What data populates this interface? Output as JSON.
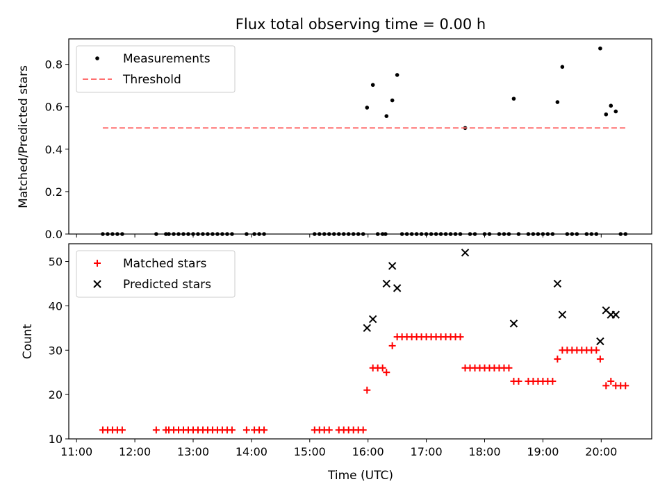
{
  "chart_data": [
    {
      "type": "scatter",
      "title": "Flux total observing time = 0.00 h",
      "ylabel": "Matched/Predicted stars",
      "xlabel": "",
      "ylim": [
        0,
        0.92
      ],
      "yticks": [
        "0.0",
        "0.2",
        "0.4",
        "0.6",
        "0.8"
      ],
      "legend": "top-left",
      "series": [
        {
          "name": "Measurements",
          "color": "#000000",
          "marker": "dot",
          "points": [
            [
              "11:27",
              0
            ],
            [
              "11:32",
              0
            ],
            [
              "11:37",
              0
            ],
            [
              "11:42",
              0
            ],
            [
              "11:47",
              0
            ],
            [
              "12:22",
              0
            ],
            [
              "12:32",
              0
            ],
            [
              "12:35",
              0
            ],
            [
              "12:40",
              0
            ],
            [
              "12:45",
              0
            ],
            [
              "12:50",
              0
            ],
            [
              "12:55",
              0
            ],
            [
              "13:00",
              0
            ],
            [
              "13:05",
              0
            ],
            [
              "13:10",
              0
            ],
            [
              "13:15",
              0
            ],
            [
              "13:20",
              0
            ],
            [
              "13:25",
              0
            ],
            [
              "13:30",
              0
            ],
            [
              "13:35",
              0
            ],
            [
              "13:40",
              0
            ],
            [
              "13:55",
              0
            ],
            [
              "14:03",
              0
            ],
            [
              "14:08",
              0
            ],
            [
              "14:13",
              0
            ],
            [
              "15:05",
              0
            ],
            [
              "15:10",
              0
            ],
            [
              "15:15",
              0
            ],
            [
              "15:20",
              0
            ],
            [
              "15:25",
              0
            ],
            [
              "15:30",
              0
            ],
            [
              "15:35",
              0
            ],
            [
              "15:40",
              0
            ],
            [
              "15:45",
              0
            ],
            [
              "15:50",
              0
            ],
            [
              "15:55",
              0
            ],
            [
              "15:59",
              0.596
            ],
            [
              "16:05",
              0.703
            ],
            [
              "16:10",
              0
            ],
            [
              "16:15",
              0
            ],
            [
              "16:18",
              0
            ],
            [
              "16:19",
              0.556
            ],
            [
              "16:25",
              0.63
            ],
            [
              "16:30",
              0.75
            ],
            [
              "16:35",
              0
            ],
            [
              "16:40",
              0
            ],
            [
              "16:45",
              0
            ],
            [
              "16:50",
              0
            ],
            [
              "16:55",
              0
            ],
            [
              "17:00",
              0
            ],
            [
              "17:05",
              0
            ],
            [
              "17:10",
              0
            ],
            [
              "17:15",
              0
            ],
            [
              "17:20",
              0
            ],
            [
              "17:25",
              0
            ],
            [
              "17:30",
              0
            ],
            [
              "17:35",
              0
            ],
            [
              "17:40",
              0.5
            ],
            [
              "17:45",
              0
            ],
            [
              "17:50",
              0
            ],
            [
              "18:00",
              0
            ],
            [
              "18:05",
              0
            ],
            [
              "18:15",
              0
            ],
            [
              "18:20",
              0
            ],
            [
              "18:25",
              0
            ],
            [
              "18:30",
              0.638
            ],
            [
              "18:35",
              0
            ],
            [
              "18:45",
              0
            ],
            [
              "18:50",
              0
            ],
            [
              "18:55",
              0
            ],
            [
              "19:00",
              0
            ],
            [
              "19:05",
              0
            ],
            [
              "19:10",
              0
            ],
            [
              "19:15",
              0.622
            ],
            [
              "19:20",
              0.788
            ],
            [
              "19:25",
              0
            ],
            [
              "19:30",
              0
            ],
            [
              "19:35",
              0
            ],
            [
              "19:45",
              0
            ],
            [
              "19:50",
              0
            ],
            [
              "19:55",
              0
            ],
            [
              "19:59",
              0.875
            ],
            [
              "20:05",
              0.564
            ],
            [
              "20:10",
              0.605
            ],
            [
              "20:15",
              0.578
            ],
            [
              "20:20",
              0
            ],
            [
              "20:25",
              0
            ]
          ]
        },
        {
          "name": "Threshold",
          "color": "#ff7070",
          "style": "dashed",
          "points": [
            [
              "11:27",
              0.5
            ],
            [
              "20:25",
              0.5
            ]
          ]
        }
      ]
    },
    {
      "type": "scatter",
      "title": "",
      "xlabel": "Time (UTC)",
      "ylabel": "Count",
      "ylim": [
        10,
        54
      ],
      "yticks": [
        "10",
        "20",
        "30",
        "40",
        "50"
      ],
      "xticks": [
        "11:00",
        "12:00",
        "13:00",
        "14:00",
        "15:00",
        "16:00",
        "17:00",
        "18:00",
        "19:00",
        "20:00"
      ],
      "legend": "top-left",
      "series": [
        {
          "name": "Matched stars",
          "color": "#ff0000",
          "marker": "plus",
          "points": [
            [
              "11:27",
              12
            ],
            [
              "11:32",
              12
            ],
            [
              "11:37",
              12
            ],
            [
              "11:42",
              12
            ],
            [
              "11:47",
              12
            ],
            [
              "12:22",
              12
            ],
            [
              "12:32",
              12
            ],
            [
              "12:35",
              12
            ],
            [
              "12:40",
              12
            ],
            [
              "12:45",
              12
            ],
            [
              "12:50",
              12
            ],
            [
              "12:55",
              12
            ],
            [
              "13:00",
              12
            ],
            [
              "13:05",
              12
            ],
            [
              "13:10",
              12
            ],
            [
              "13:15",
              12
            ],
            [
              "13:20",
              12
            ],
            [
              "13:25",
              12
            ],
            [
              "13:30",
              12
            ],
            [
              "13:35",
              12
            ],
            [
              "13:40",
              12
            ],
            [
              "13:55",
              12
            ],
            [
              "14:03",
              12
            ],
            [
              "14:08",
              12
            ],
            [
              "14:13",
              12
            ],
            [
              "15:05",
              12
            ],
            [
              "15:10",
              12
            ],
            [
              "15:15",
              12
            ],
            [
              "15:20",
              12
            ],
            [
              "15:30",
              12
            ],
            [
              "15:35",
              12
            ],
            [
              "15:40",
              12
            ],
            [
              "15:45",
              12
            ],
            [
              "15:50",
              12
            ],
            [
              "15:55",
              12
            ],
            [
              "15:59",
              21
            ],
            [
              "16:05",
              26
            ],
            [
              "16:10",
              26
            ],
            [
              "16:15",
              26
            ],
            [
              "16:19",
              25
            ],
            [
              "16:25",
              31
            ],
            [
              "16:30",
              33
            ],
            [
              "16:35",
              33
            ],
            [
              "16:40",
              33
            ],
            [
              "16:45",
              33
            ],
            [
              "16:50",
              33
            ],
            [
              "16:55",
              33
            ],
            [
              "17:00",
              33
            ],
            [
              "17:05",
              33
            ],
            [
              "17:10",
              33
            ],
            [
              "17:15",
              33
            ],
            [
              "17:20",
              33
            ],
            [
              "17:25",
              33
            ],
            [
              "17:30",
              33
            ],
            [
              "17:35",
              33
            ],
            [
              "17:40",
              26
            ],
            [
              "17:45",
              26
            ],
            [
              "17:50",
              26
            ],
            [
              "17:55",
              26
            ],
            [
              "18:00",
              26
            ],
            [
              "18:05",
              26
            ],
            [
              "18:10",
              26
            ],
            [
              "18:15",
              26
            ],
            [
              "18:20",
              26
            ],
            [
              "18:25",
              26
            ],
            [
              "18:30",
              23
            ],
            [
              "18:35",
              23
            ],
            [
              "18:45",
              23
            ],
            [
              "18:50",
              23
            ],
            [
              "18:55",
              23
            ],
            [
              "19:00",
              23
            ],
            [
              "19:05",
              23
            ],
            [
              "19:10",
              23
            ],
            [
              "19:15",
              28
            ],
            [
              "19:20",
              30
            ],
            [
              "19:25",
              30
            ],
            [
              "19:30",
              30
            ],
            [
              "19:35",
              30
            ],
            [
              "19:40",
              30
            ],
            [
              "19:45",
              30
            ],
            [
              "19:50",
              30
            ],
            [
              "19:55",
              30
            ],
            [
              "19:59",
              28
            ],
            [
              "20:05",
              22
            ],
            [
              "20:10",
              23
            ],
            [
              "20:15",
              22
            ],
            [
              "20:20",
              22
            ],
            [
              "20:25",
              22
            ]
          ]
        },
        {
          "name": "Predicted stars",
          "color": "#000000",
          "marker": "x",
          "points": [
            [
              "15:59",
              35
            ],
            [
              "16:05",
              37
            ],
            [
              "16:19",
              45
            ],
            [
              "16:25",
              49
            ],
            [
              "16:30",
              44
            ],
            [
              "17:40",
              52
            ],
            [
              "18:30",
              36
            ],
            [
              "19:15",
              45
            ],
            [
              "19:20",
              38
            ],
            [
              "19:59",
              32
            ],
            [
              "20:05",
              39
            ],
            [
              "20:10",
              38
            ],
            [
              "20:15",
              38
            ]
          ]
        }
      ]
    }
  ]
}
